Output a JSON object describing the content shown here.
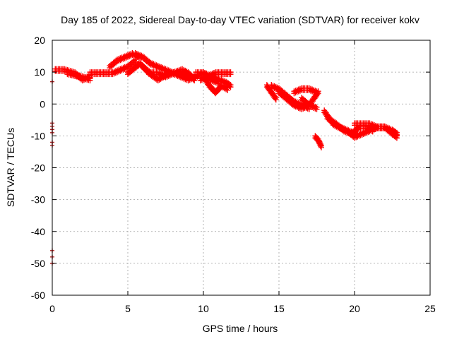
{
  "chart_data": {
    "type": "scatter",
    "title": "Day 185 of 2022, Sidereal Day-to-day VTEC variation (SDTVAR) for receiver kokv",
    "xlabel": "GPS time / hours",
    "ylabel": "SDTVAR / TECUs",
    "xlim": [
      0,
      25
    ],
    "ylim": [
      -60,
      20
    ],
    "xticks": [
      "0",
      "5",
      "10",
      "15",
      "20",
      "25"
    ],
    "yticks": [
      "20",
      "10",
      "0",
      "-10",
      "-20",
      "-30",
      "-40",
      "-50",
      "-60"
    ],
    "grid": true,
    "marker": "+",
    "color": "#ff0000",
    "sparse_color": "#b22222",
    "tracks": [
      {
        "name": "track-1",
        "x": [
          0.2,
          0.8,
          1.5,
          2.0,
          2.5
        ],
        "y": [
          11,
          11,
          10,
          8,
          9
        ]
      },
      {
        "name": "track-2",
        "x": [
          1.0,
          1.8,
          2.5
        ],
        "y": [
          10,
          9,
          8
        ]
      },
      {
        "name": "track-3",
        "x": [
          2.5,
          3.2,
          4.0,
          4.5,
          5.0,
          5.5
        ],
        "y": [
          10,
          10,
          10,
          11,
          12,
          14
        ]
      },
      {
        "name": "track-4",
        "x": [
          3.8,
          4.3,
          4.8,
          5.3,
          5.8
        ],
        "y": [
          12,
          14,
          15,
          16,
          15
        ]
      },
      {
        "name": "track-5",
        "x": [
          5.5,
          6.0,
          6.5,
          7.0,
          7.5,
          8.0,
          8.5,
          9.0
        ],
        "y": [
          16,
          15,
          13,
          12,
          11,
          10,
          9,
          8
        ]
      },
      {
        "name": "track-6",
        "x": [
          5.0,
          5.8,
          6.4,
          7.0,
          7.7,
          8.4,
          9.0
        ],
        "y": [
          10,
          13,
          10,
          8,
          10,
          10,
          9
        ]
      },
      {
        "name": "track-7",
        "x": [
          6.0,
          6.5,
          7.0,
          7.5,
          8.0,
          8.6,
          9.0,
          9.4
        ],
        "y": [
          12,
          10,
          10,
          9,
          10,
          11,
          10,
          8
        ]
      },
      {
        "name": "track-8",
        "x": [
          9.0,
          9.5,
          10.0,
          10.5,
          11.0
        ],
        "y": [
          8,
          9,
          10,
          8,
          7
        ]
      },
      {
        "name": "track-9",
        "x": [
          10.0,
          10.4,
          10.8,
          11.2,
          11.6
        ],
        "y": [
          9,
          6,
          4,
          6,
          5
        ]
      },
      {
        "name": "track-10",
        "x": [
          9.8,
          10.3,
          10.8,
          11.3,
          11.8
        ],
        "y": [
          8,
          9,
          10,
          10,
          10
        ]
      },
      {
        "name": "track-11",
        "x": [
          9.5,
          10.0,
          10.5,
          11.0,
          11.5,
          11.8
        ],
        "y": [
          10,
          10,
          9,
          8,
          7,
          6
        ]
      },
      {
        "name": "track-12",
        "x": [
          14.2,
          14.5,
          14.8
        ],
        "y": [
          6,
          4,
          2
        ]
      },
      {
        "name": "track-13",
        "x": [
          14.5,
          15.0,
          15.5,
          16.0,
          16.5,
          17.0
        ],
        "y": [
          6,
          5,
          3,
          1,
          0,
          -1
        ]
      },
      {
        "name": "track-14",
        "x": [
          15.0,
          15.5,
          16.0,
          16.5,
          17.0,
          17.3,
          17.6
        ],
        "y": [
          4,
          2,
          0,
          -1,
          0,
          2,
          4
        ]
      },
      {
        "name": "track-15",
        "x": [
          16.0,
          16.5,
          17.0,
          17.5
        ],
        "y": [
          4,
          5,
          5,
          4
        ]
      },
      {
        "name": "track-16",
        "x": [
          16.5,
          17.0,
          17.5
        ],
        "y": [
          2,
          0,
          -1
        ]
      },
      {
        "name": "track-17",
        "x": [
          17.4,
          17.6,
          17.8
        ],
        "y": [
          -10,
          -11,
          -13
        ]
      },
      {
        "name": "track-18",
        "x": [
          18.0,
          18.3,
          18.6,
          19.0,
          19.5,
          20.0
        ],
        "y": [
          -2,
          -4,
          -6,
          -7,
          -8,
          -9
        ]
      },
      {
        "name": "track-19",
        "x": [
          18.2,
          18.8,
          19.3,
          19.8,
          20.3,
          20.8,
          21.2
        ],
        "y": [
          -4,
          -6,
          -8,
          -9,
          -7,
          -7,
          -8
        ]
      },
      {
        "name": "track-20",
        "x": [
          19.0,
          19.5,
          20.0,
          20.5,
          21.0,
          21.5,
          22.0
        ],
        "y": [
          -7,
          -8,
          -10,
          -9,
          -8,
          -7,
          -7
        ]
      },
      {
        "name": "track-21",
        "x": [
          20.0,
          20.5,
          21.0,
          21.5,
          22.0,
          22.5,
          22.8
        ],
        "y": [
          -6,
          -6,
          -6,
          -7,
          -7,
          -8,
          -9
        ]
      },
      {
        "name": "track-22",
        "x": [
          21.5,
          22.0,
          22.5,
          22.8
        ],
        "y": [
          -7,
          -7,
          -9,
          -10
        ]
      }
    ],
    "sparse_points": {
      "x": [
        0,
        0,
        0,
        0,
        0,
        0,
        0,
        0,
        0,
        0
      ],
      "y": [
        7,
        -6,
        -7,
        -8,
        -9,
        -12,
        -13,
        -46,
        -48,
        -50
      ]
    }
  }
}
